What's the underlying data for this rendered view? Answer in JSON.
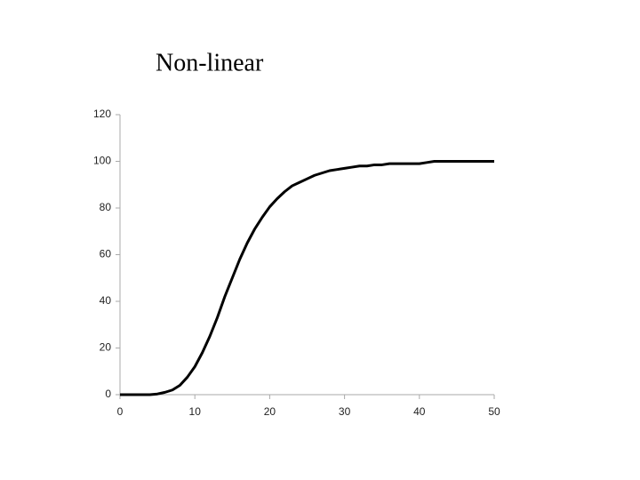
{
  "chart_data": {
    "type": "line",
    "title": "Non-linear",
    "x": [
      0,
      1,
      2,
      3,
      4,
      5,
      6,
      7,
      8,
      9,
      10,
      11,
      12,
      13,
      14,
      15,
      16,
      17,
      18,
      19,
      20,
      21,
      22,
      23,
      24,
      25,
      26,
      27,
      28,
      29,
      30,
      31,
      32,
      33,
      34,
      35,
      36,
      37,
      38,
      39,
      40,
      41,
      42,
      43,
      44,
      45,
      46,
      47,
      48,
      49,
      50
    ],
    "series": [
      {
        "name": "Non-linear",
        "color": "#000000",
        "values": [
          0,
          0,
          0,
          0,
          0,
          0.3,
          1,
          2,
          4,
          7.5,
          12,
          18,
          25,
          33,
          42,
          50,
          58,
          65,
          71,
          76,
          80.5,
          84,
          87,
          89.5,
          91,
          92.5,
          94,
          95,
          96,
          96.5,
          97,
          97.5,
          98,
          98,
          98.5,
          98.5,
          99,
          99,
          99,
          99,
          99,
          99.5,
          100,
          100,
          100,
          100,
          100,
          100,
          100,
          100,
          100
        ]
      }
    ],
    "xlim": [
      0,
      50
    ],
    "xticks": [
      0,
      10,
      20,
      30,
      40,
      50
    ],
    "ylim": [
      0,
      120
    ],
    "yticks": [
      0,
      20,
      40,
      60,
      80,
      100,
      120
    ]
  }
}
